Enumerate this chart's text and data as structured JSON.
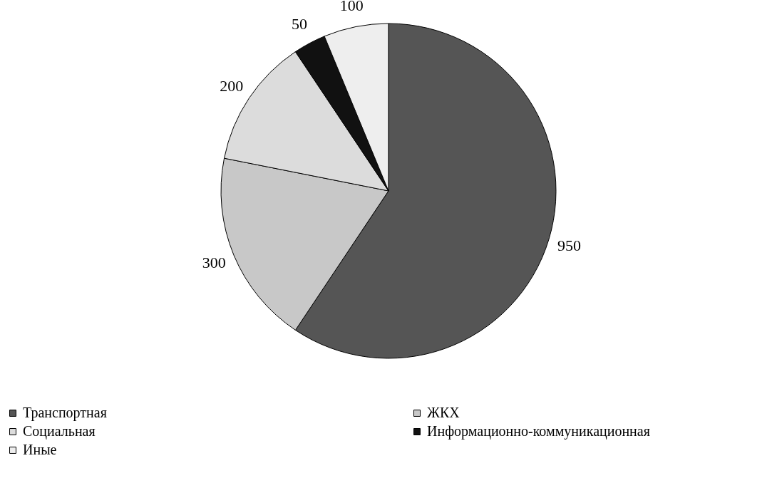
{
  "chart_data": {
    "type": "pie",
    "categories": [
      "Транспортная",
      "ЖКХ",
      "Социальная",
      "Информационно-коммуникационная",
      "Иные"
    ],
    "values": [
      950,
      300,
      200,
      50,
      100
    ],
    "colors": [
      "#555555",
      "#c8c8c8",
      "#dcdcdc",
      "#111111",
      "#eeeeee"
    ],
    "data_labels": true,
    "legend": "bottom"
  }
}
